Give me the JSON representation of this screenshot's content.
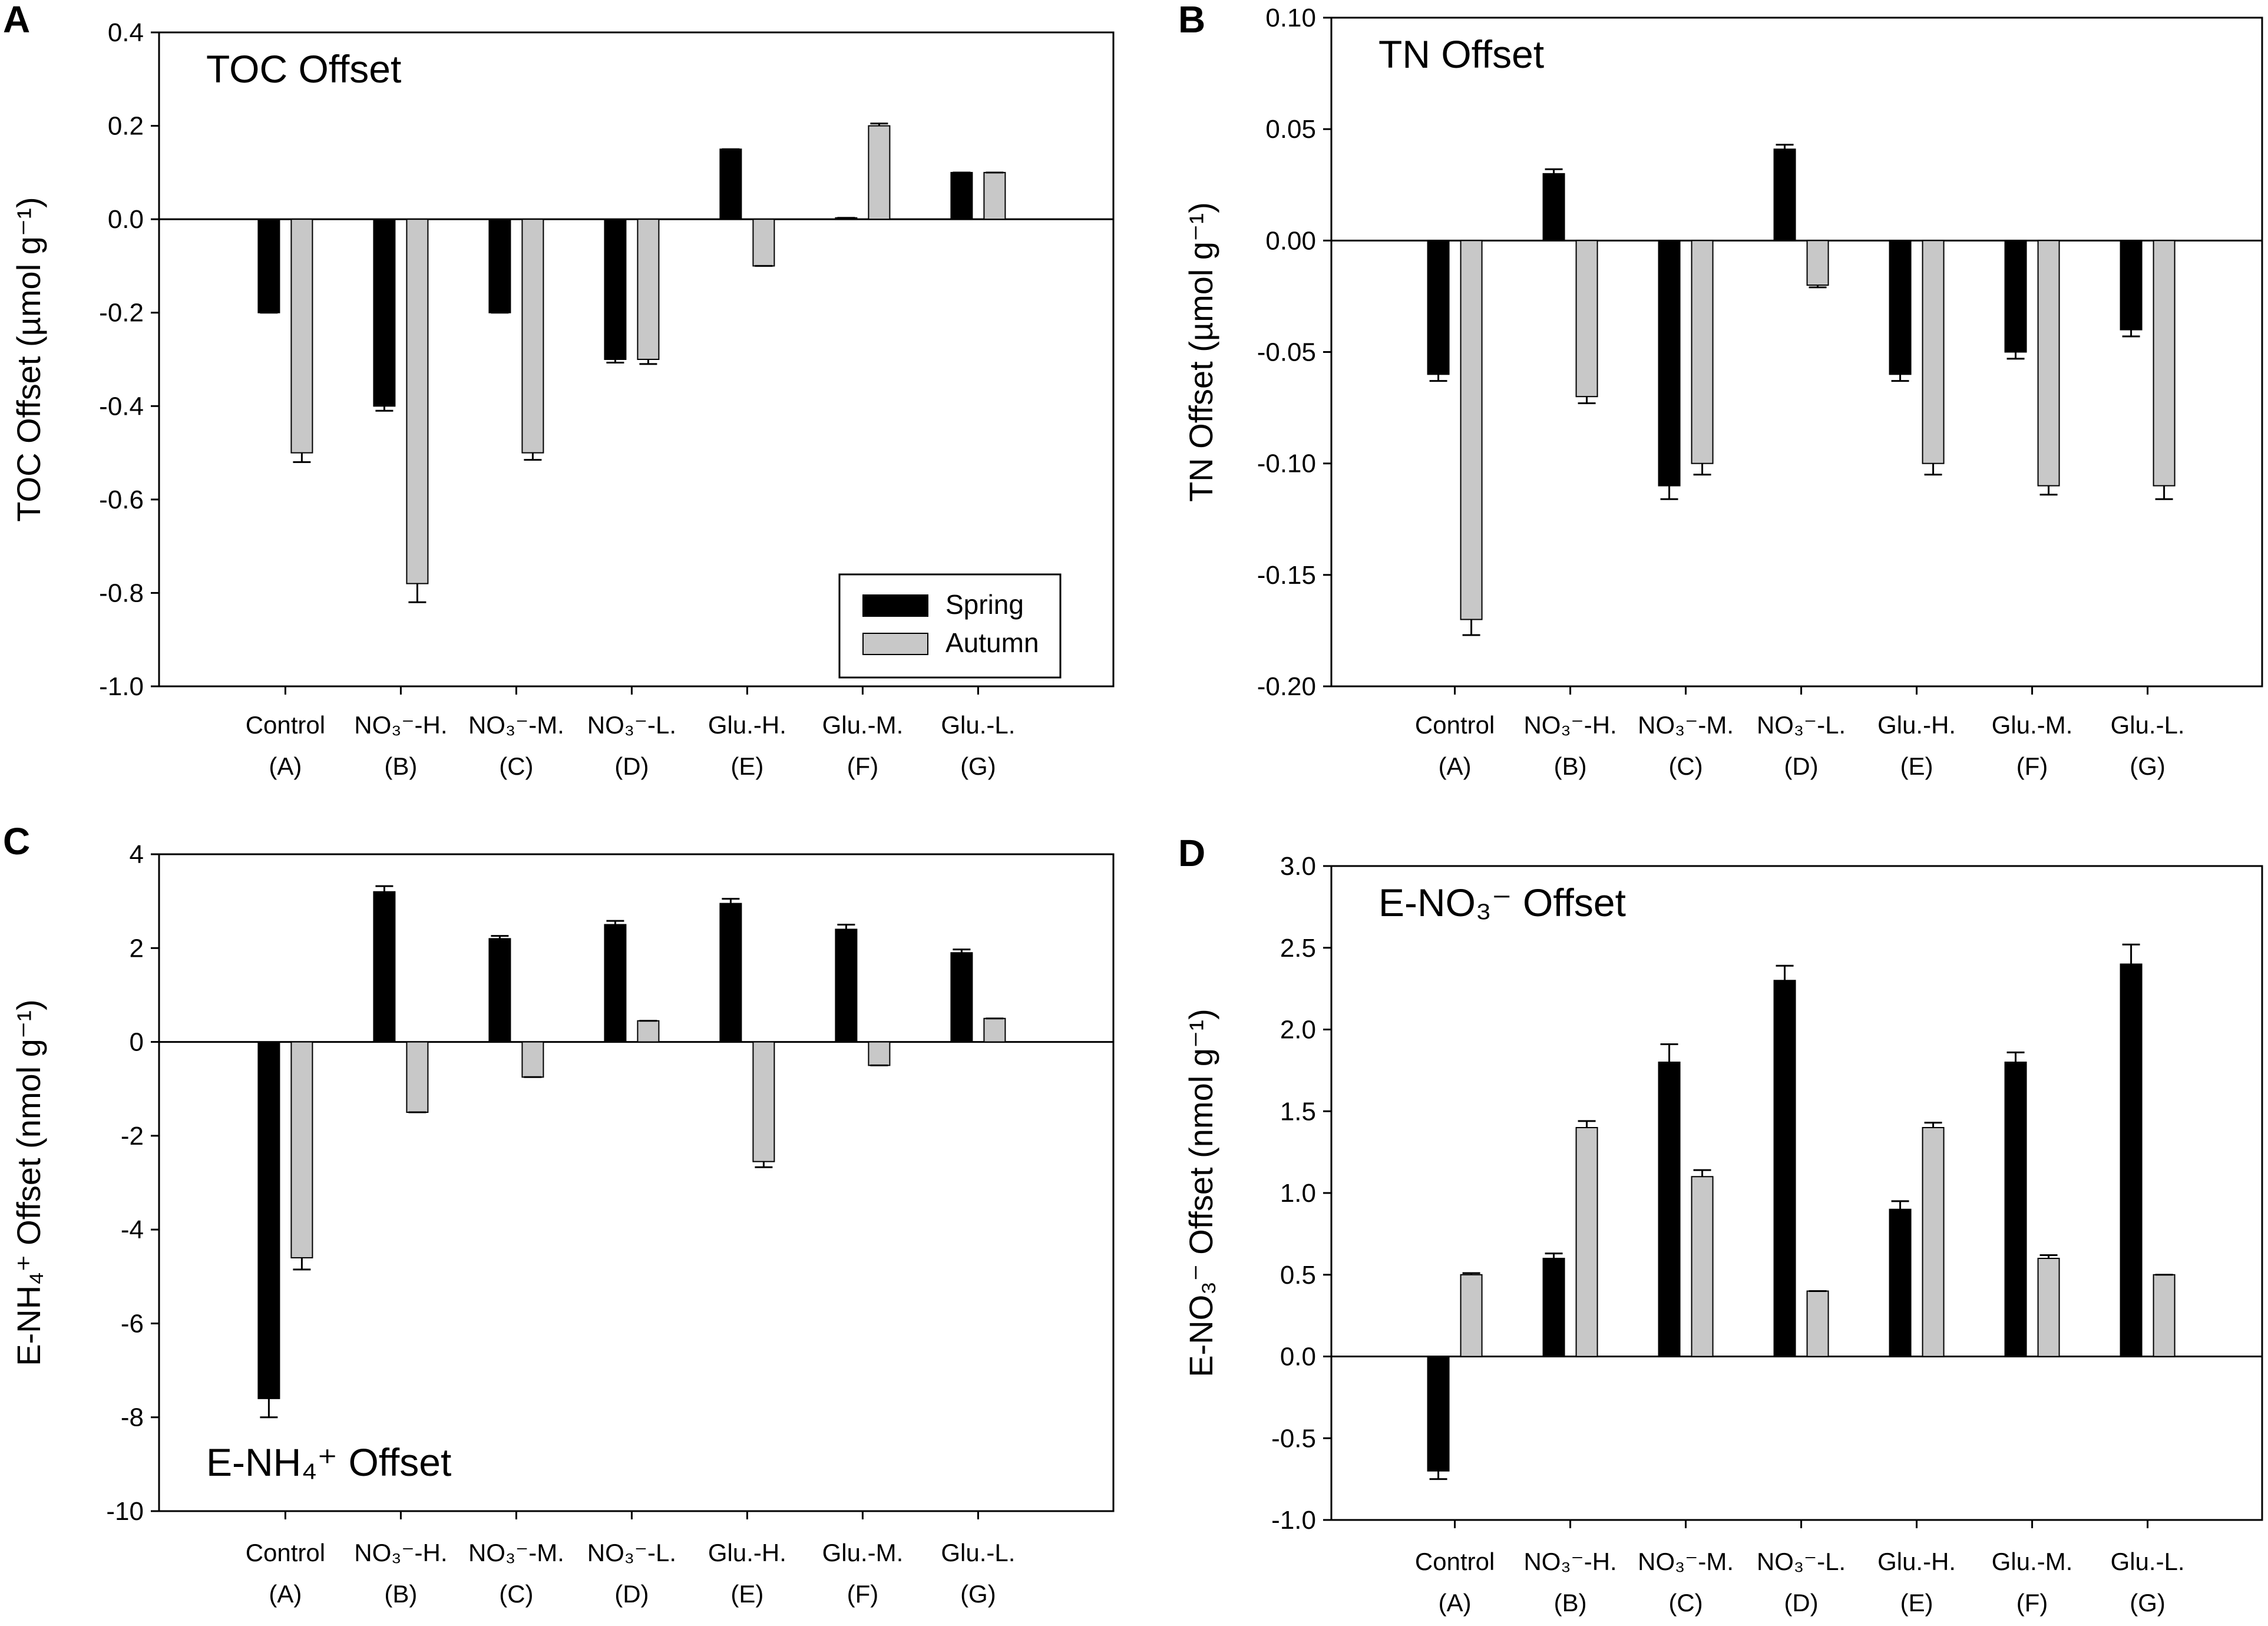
{
  "colors": {
    "spring": "#000000",
    "autumn": "#c8c8c8",
    "axis": "#000000"
  },
  "legend": {
    "placement": "bottom-right",
    "panel": 0,
    "items": [
      "Spring",
      "Autumn"
    ]
  },
  "chart_data": [
    {
      "type": "bar",
      "panel_letter": "A",
      "title": "TOC Offset",
      "title_placement": "top-left",
      "ylabel": "TOC Offset (µmol g⁻¹)",
      "ylim": [
        -1.0,
        0.4
      ],
      "yticks": [
        0.4,
        0.2,
        0.0,
        -0.2,
        -0.4,
        -0.6,
        -0.8,
        -1.0
      ],
      "ytick_labels": [
        "0.4",
        "0.2",
        "0.0",
        "-0.2",
        "-0.4",
        "-0.6",
        "-0.8",
        "-1.0"
      ],
      "categories": [
        "Control",
        "NO₃⁻-H.",
        "NO₃⁻-M.",
        "NO₃⁻-L.",
        "Glu.-H.",
        "Glu.-M.",
        "Glu.-L."
      ],
      "category_codes": [
        "(A)",
        "(B)",
        "(C)",
        "(D)",
        "(E)",
        "(F)",
        "(G)"
      ],
      "series": [
        {
          "name": "Spring",
          "values": [
            -0.2,
            -0.4,
            -0.2,
            -0.3,
            0.15,
            0.003,
            0.1
          ],
          "errors": [
            0.0,
            0.01,
            0.0,
            0.007,
            0.0,
            0.0,
            0.0
          ]
        },
        {
          "name": "Autumn",
          "values": [
            -0.5,
            -0.78,
            -0.5,
            -0.3,
            -0.1,
            0.2,
            0.1
          ],
          "errors": [
            0.02,
            0.04,
            0.015,
            0.01,
            0.0,
            0.005,
            0.0
          ]
        }
      ]
    },
    {
      "type": "bar",
      "panel_letter": "B",
      "title": "TN Offset",
      "title_placement": "top-left",
      "ylabel": "TN Offset (µmol g⁻¹)",
      "ylim": [
        -0.2,
        0.1
      ],
      "yticks": [
        0.1,
        0.05,
        0.0,
        -0.05,
        -0.1,
        -0.15,
        -0.2
      ],
      "ytick_labels": [
        "0.10",
        "0.05",
        "0.00",
        "-0.05",
        "-0.10",
        "-0.15",
        "-0.20"
      ],
      "categories": [
        "Control",
        "NO₃⁻-H.",
        "NO₃⁻-M.",
        "NO₃⁻-L.",
        "Glu.-H.",
        "Glu.-M.",
        "Glu.-L."
      ],
      "category_codes": [
        "(A)",
        "(B)",
        "(C)",
        "(D)",
        "(E)",
        "(F)",
        "(G)"
      ],
      "series": [
        {
          "name": "Spring",
          "values": [
            -0.06,
            0.03,
            -0.11,
            0.041,
            -0.06,
            -0.05,
            -0.04
          ],
          "errors": [
            0.003,
            0.002,
            0.006,
            0.002,
            0.003,
            0.003,
            0.003
          ]
        },
        {
          "name": "Autumn",
          "values": [
            -0.17,
            -0.07,
            -0.1,
            -0.02,
            -0.1,
            -0.11,
            -0.11
          ],
          "errors": [
            0.007,
            0.003,
            0.005,
            0.001,
            0.005,
            0.004,
            0.006
          ]
        }
      ]
    },
    {
      "type": "bar",
      "panel_letter": "C",
      "title": "E-NH₄⁺ Offset",
      "title_placement": "bottom-left",
      "ylabel": "E-NH₄⁺ Offset (nmol g⁻¹)",
      "ylim": [
        -10,
        4
      ],
      "yticks": [
        4,
        2,
        0,
        -2,
        -4,
        -6,
        -8,
        -10
      ],
      "ytick_labels": [
        "4",
        "2",
        "0",
        "-2",
        "-4",
        "-6",
        "-8",
        "-10"
      ],
      "categories": [
        "Control",
        "NO₃⁻-H.",
        "NO₃⁻-M.",
        "NO₃⁻-L.",
        "Glu.-H.",
        "Glu.-M.",
        "Glu.-L."
      ],
      "category_codes": [
        "(A)",
        "(B)",
        "(C)",
        "(D)",
        "(E)",
        "(F)",
        "(G)"
      ],
      "series": [
        {
          "name": "Spring",
          "values": [
            -7.6,
            3.2,
            2.2,
            2.5,
            2.95,
            2.4,
            1.9
          ],
          "errors": [
            0.4,
            0.12,
            0.06,
            0.08,
            0.1,
            0.1,
            0.07
          ]
        },
        {
          "name": "Autumn",
          "values": [
            -4.6,
            -1.5,
            -0.75,
            0.45,
            -2.55,
            -0.5,
            0.5
          ],
          "errors": [
            0.25,
            0.0,
            0.0,
            0.0,
            0.12,
            0.0,
            0.0
          ]
        }
      ]
    },
    {
      "type": "bar",
      "panel_letter": "D",
      "title": "E-NO₃⁻ Offset",
      "title_placement": "top-left",
      "ylabel": "E-NO₃⁻ Offset (nmol g⁻¹)",
      "ylim": [
        -1.0,
        3.0
      ],
      "yticks": [
        3.0,
        2.5,
        2.0,
        1.5,
        1.0,
        0.5,
        0.0,
        -0.5,
        -1.0
      ],
      "ytick_labels": [
        "3.0",
        "2.5",
        "2.0",
        "1.5",
        "1.0",
        "0.5",
        "0.0",
        "-0.5",
        "-1.0"
      ],
      "categories": [
        "Control",
        "NO₃⁻-H.",
        "NO₃⁻-M.",
        "NO₃⁻-L.",
        "Glu.-H.",
        "Glu.-M.",
        "Glu.-L."
      ],
      "category_codes": [
        "(A)",
        "(B)",
        "(C)",
        "(D)",
        "(E)",
        "(F)",
        "(G)"
      ],
      "series": [
        {
          "name": "Spring",
          "values": [
            -0.7,
            0.6,
            1.8,
            2.3,
            0.9,
            1.8,
            2.4
          ],
          "errors": [
            0.05,
            0.03,
            0.11,
            0.09,
            0.05,
            0.06,
            0.12
          ]
        },
        {
          "name": "Autumn",
          "values": [
            0.5,
            1.4,
            1.1,
            0.4,
            1.4,
            0.6,
            0.5
          ],
          "errors": [
            0.01,
            0.04,
            0.04,
            0.0,
            0.03,
            0.02,
            0.0
          ]
        }
      ]
    }
  ]
}
